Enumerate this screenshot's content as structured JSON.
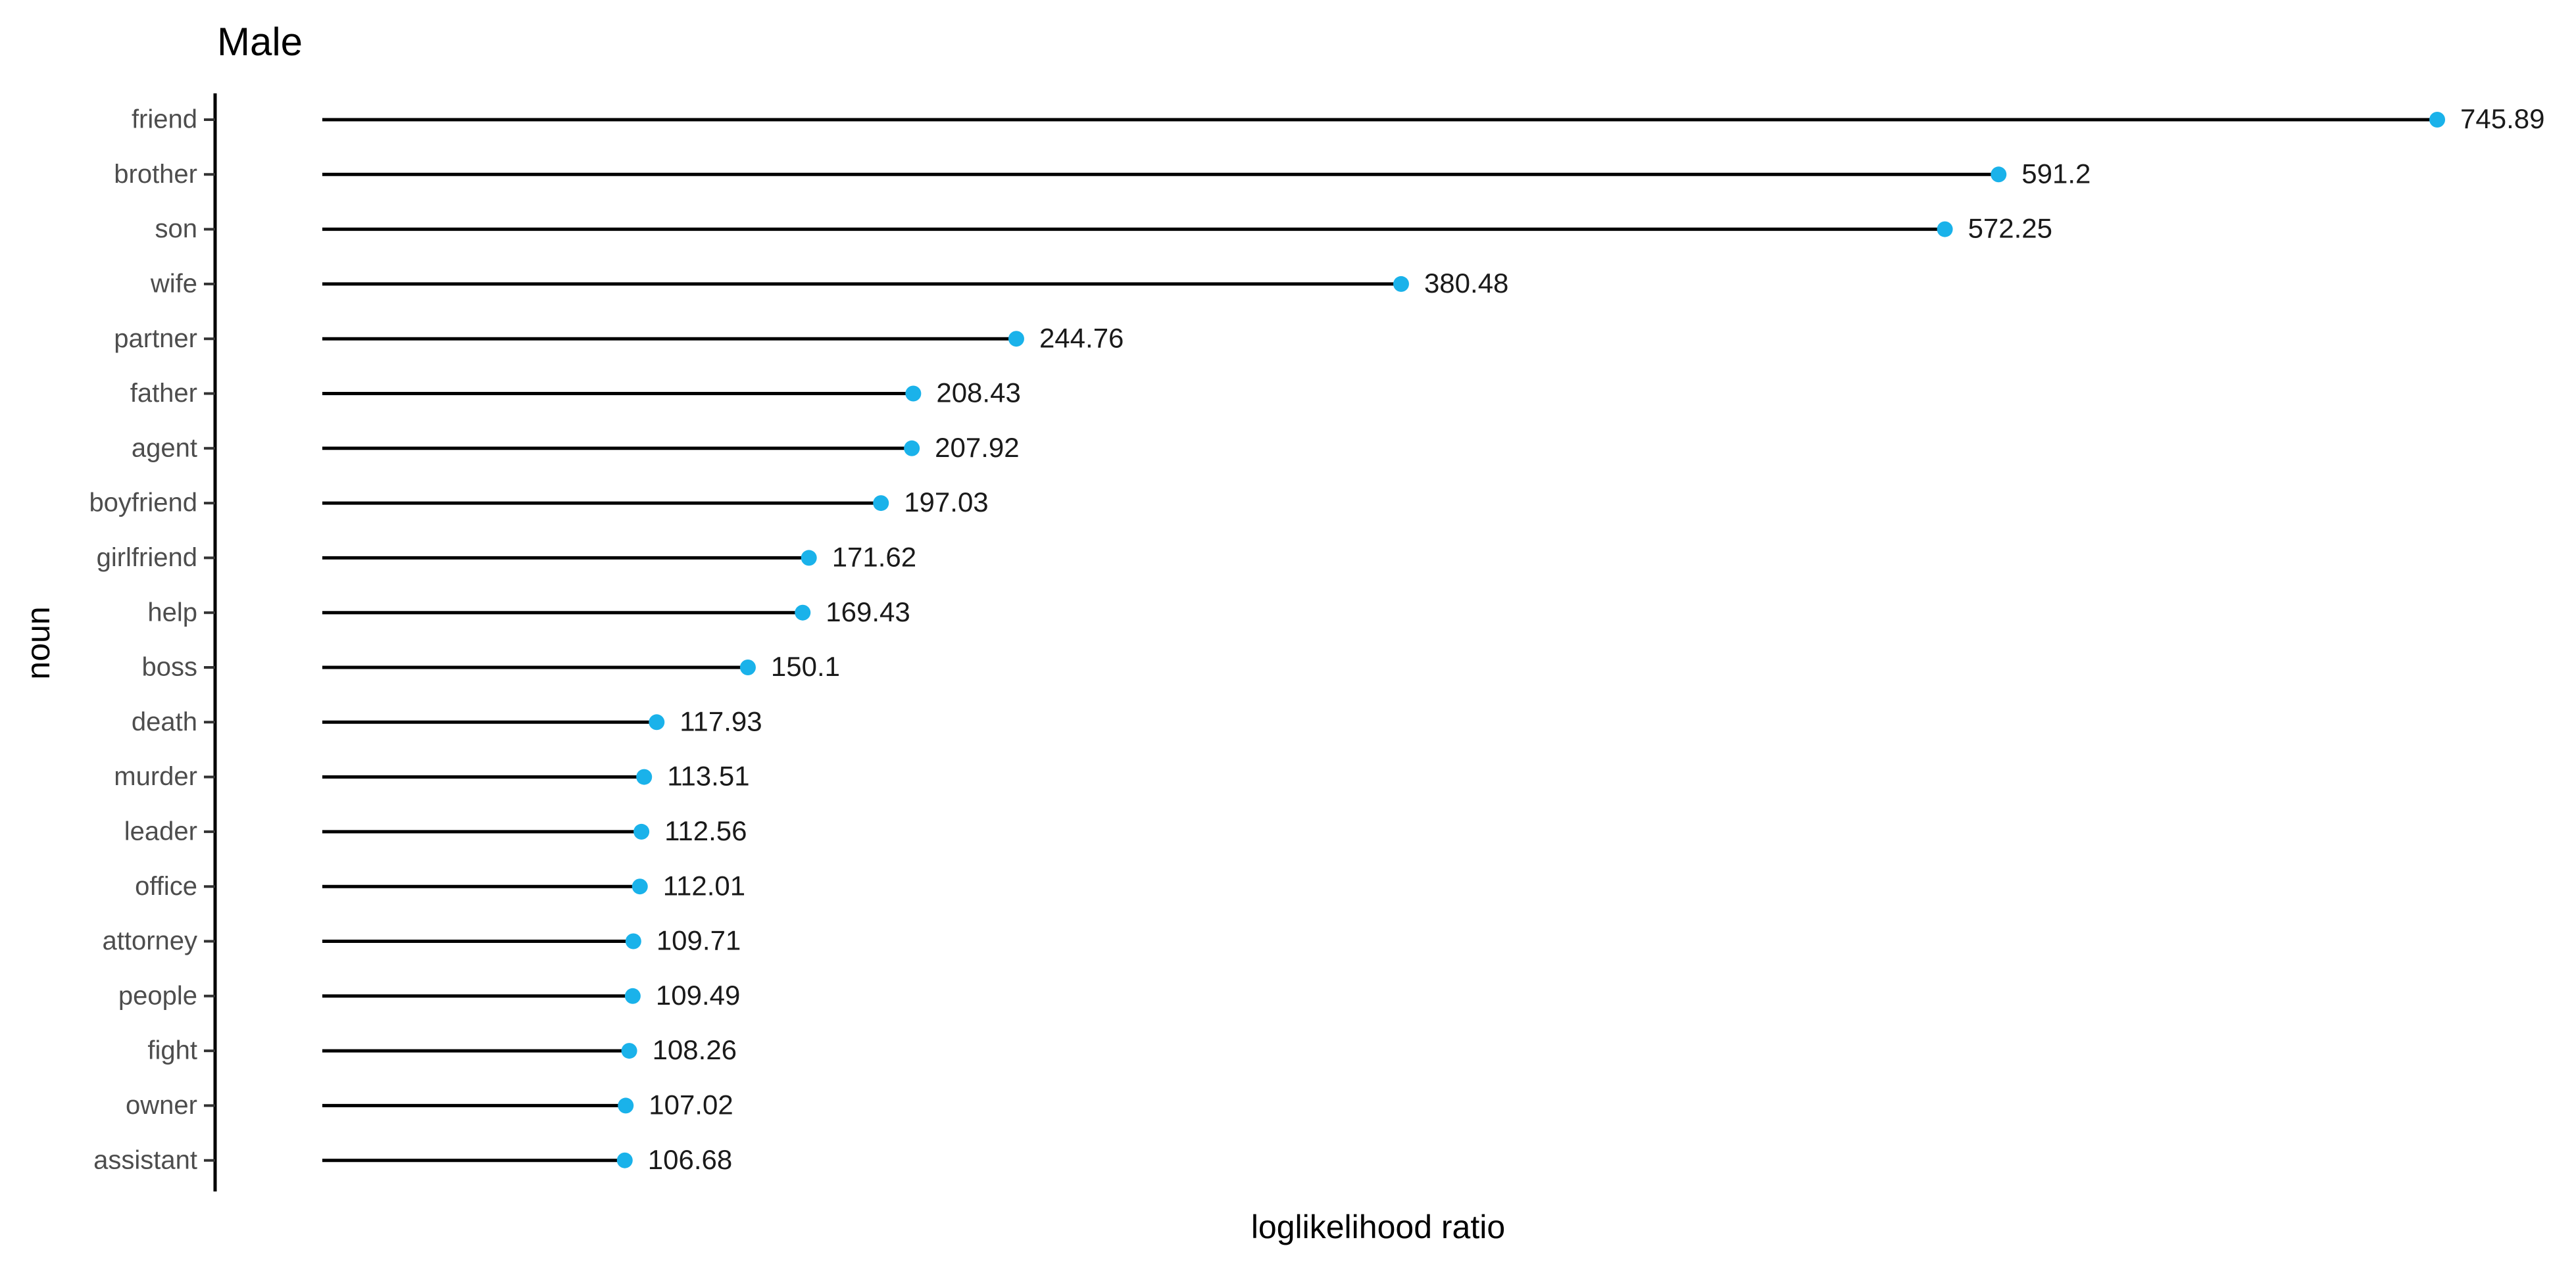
{
  "chart_data": {
    "type": "lollipop",
    "title": "Male",
    "x_label": "loglikelihood ratio",
    "y_label": "noun",
    "categories": [
      "friend",
      "brother",
      "son",
      "wife",
      "partner",
      "father",
      "agent",
      "boyfriend",
      "girlfriend",
      "help",
      "boss",
      "death",
      "murder",
      "leader",
      "office",
      "attorney",
      "people",
      "fight",
      "owner",
      "assistant"
    ],
    "values": [
      745.89,
      591.2,
      572.25,
      380.48,
      244.76,
      208.43,
      207.92,
      197.03,
      171.62,
      169.43,
      150.1,
      117.93,
      113.51,
      112.56,
      112.01,
      109.71,
      109.49,
      108.26,
      107.02,
      106.68
    ],
    "color": "#1ab2ea",
    "stem_color": "#000000",
    "xlim": [
      -37.8,
      788.8
    ]
  }
}
